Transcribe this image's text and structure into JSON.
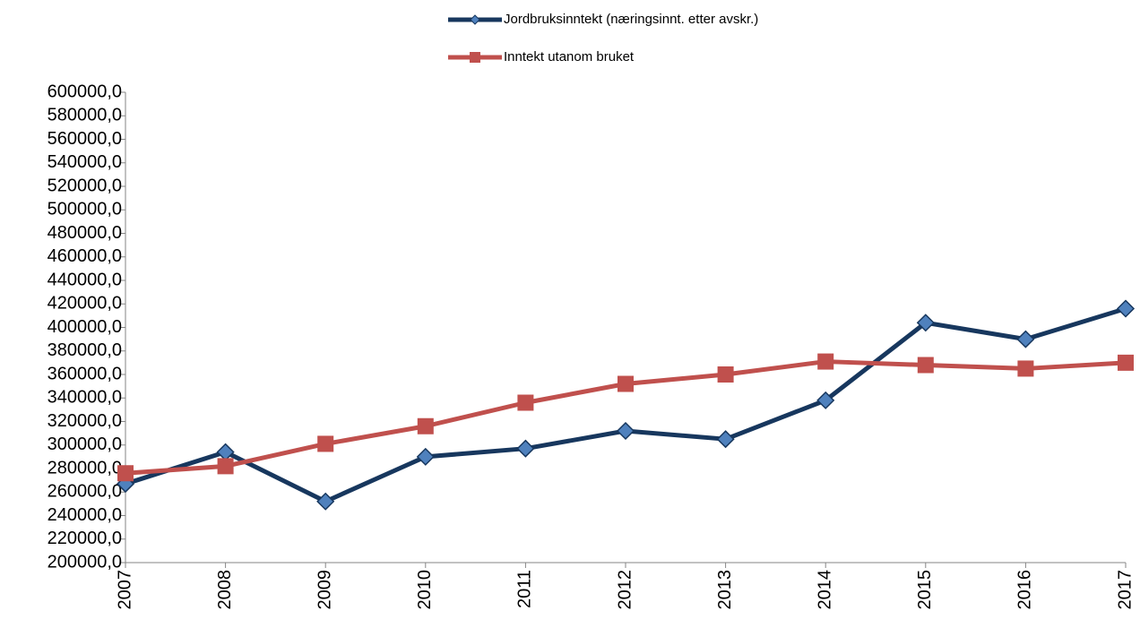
{
  "chart_data": {
    "type": "line",
    "categories": [
      "2007",
      "2008",
      "2009",
      "2010",
      "2011",
      "2012",
      "2013",
      "2014",
      "2015",
      "2016",
      "2017"
    ],
    "series": [
      {
        "name": "Jordbruksinntekt (næringsinnt. etter avskr.)",
        "color": "#17375e",
        "marker": "diamond",
        "marker_color": "#4f81bd",
        "values": [
          267000,
          294000,
          252000,
          290000,
          297000,
          312000,
          305000,
          338000,
          404000,
          390000,
          416000
        ]
      },
      {
        "name": "Inntekt utanom bruket",
        "color": "#c0504d",
        "marker": "square",
        "marker_color": "#c0504d",
        "values": [
          276000,
          282000,
          301000,
          316000,
          336000,
          352000,
          360000,
          371000,
          368000,
          365000,
          370000
        ]
      }
    ],
    "ylim": [
      200000,
      600000
    ],
    "yticks": [
      {
        "value": 200000,
        "label": "200000,0"
      },
      {
        "value": 220000,
        "label": "220000,0"
      },
      {
        "value": 240000,
        "label": "240000,0"
      },
      {
        "value": 260000,
        "label": "260000,0"
      },
      {
        "value": 280000,
        "label": "280000,0"
      },
      {
        "value": 300000,
        "label": "300000,0"
      },
      {
        "value": 320000,
        "label": "320000,0"
      },
      {
        "value": 340000,
        "label": "340000,0"
      },
      {
        "value": 360000,
        "label": "360000,0"
      },
      {
        "value": 380000,
        "label": "380000,0"
      },
      {
        "value": 400000,
        "label": "400000,0"
      },
      {
        "value": 420000,
        "label": "420000,0"
      },
      {
        "value": 440000,
        "label": "440000,0"
      },
      {
        "value": 460000,
        "label": "460000,0"
      },
      {
        "value": 480000,
        "label": "480000,0"
      },
      {
        "value": 500000,
        "label": "500000,0"
      },
      {
        "value": 520000,
        "label": "520000,0"
      },
      {
        "value": 540000,
        "label": "540000,0"
      },
      {
        "value": 560000,
        "label": "560000,0"
      },
      {
        "value": 580000,
        "label": "580000,0"
      },
      {
        "value": 600000,
        "label": "600000,0"
      }
    ],
    "grid": false,
    "legend": "top"
  }
}
